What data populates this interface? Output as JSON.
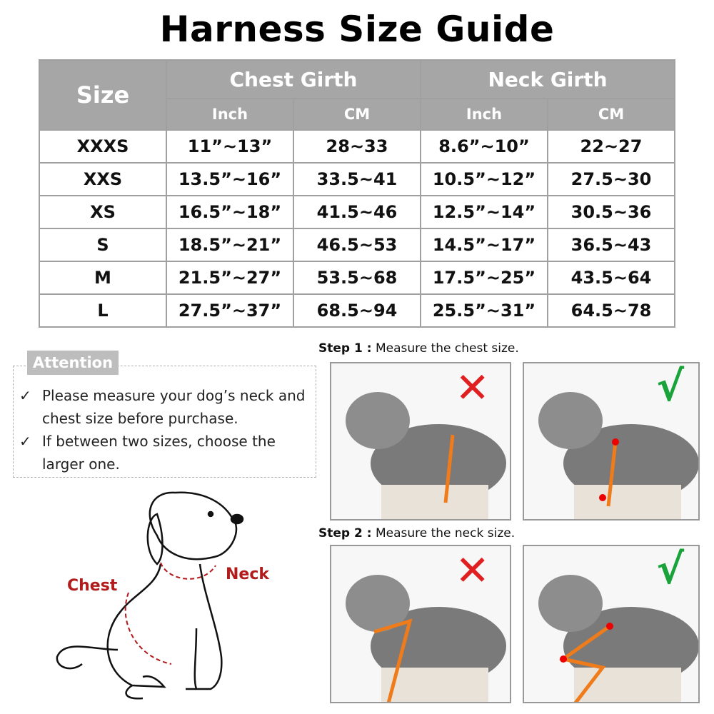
{
  "title": "Harness Size Guide",
  "table": {
    "size_header": "Size",
    "groups": [
      "Chest Girth",
      "Neck Girth"
    ],
    "units": [
      "Inch",
      "CM",
      "Inch",
      "CM"
    ],
    "rows": [
      [
        "XXXS",
        "11”~13”",
        "28~33",
        "8.6”~10”",
        "22~27"
      ],
      [
        "XXS",
        "13.5”~16”",
        "33.5~41",
        "10.5”~12”",
        "27.5~30"
      ],
      [
        "XS",
        "16.5”~18”",
        "41.5~46",
        "12.5”~14”",
        "30.5~36"
      ],
      [
        "S",
        "18.5”~21”",
        "46.5~53",
        "14.5”~17”",
        "36.5~43"
      ],
      [
        "M",
        "21.5”~27”",
        "53.5~68",
        "17.5”~25”",
        "43.5~64"
      ],
      [
        "L",
        "27.5”~37”",
        "68.5~94",
        "25.5”~31”",
        "64.5~78"
      ]
    ],
    "header_color": "#a6a6a6"
  },
  "attention": {
    "label": "Attention",
    "check": "✓",
    "items": [
      "Please measure your dog’s neck and chest size before purchase.",
      "If between two sizes, choose the larger one."
    ]
  },
  "diagram": {
    "chest_label": "Chest",
    "neck_label": "Neck"
  },
  "steps": [
    {
      "label": "Step 1 :",
      "text": "Measure the chest size."
    },
    {
      "label": "Step 2 :",
      "text": "Measure the neck size."
    }
  ],
  "marks": {
    "wrong": "✕",
    "right": "√",
    "wrong_color": "#e02020",
    "right_color": "#1aa33a"
  }
}
